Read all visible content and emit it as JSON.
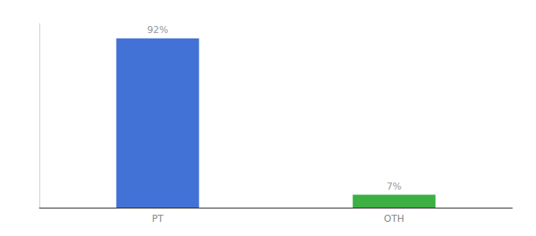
{
  "chart_data": {
    "type": "bar",
    "categories": [
      "PT",
      "OTH"
    ],
    "values": [
      92,
      7
    ],
    "value_labels": [
      "92%",
      "7%"
    ],
    "colors": [
      "#4372d6",
      "#3cb043"
    ],
    "ylim": [
      0,
      100
    ],
    "grid": false,
    "data_labels": true,
    "tick_labels": "x"
  }
}
